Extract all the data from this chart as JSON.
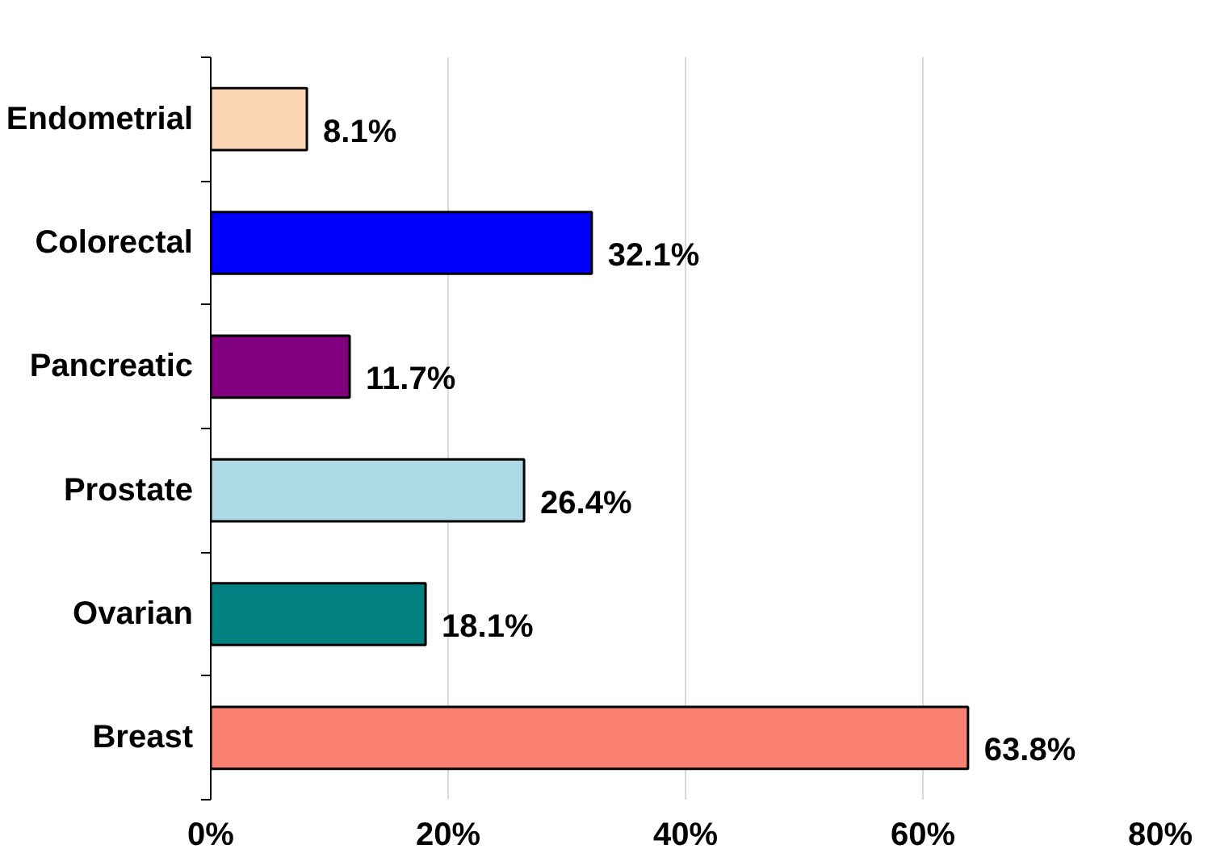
{
  "chart_data": {
    "type": "bar",
    "orientation": "horizontal",
    "categories": [
      "Endometrial",
      "Colorectal",
      "Pancreatic",
      "Prostate",
      "Ovarian",
      "Breast"
    ],
    "values": [
      8.1,
      32.1,
      11.7,
      26.4,
      18.1,
      63.8
    ],
    "colors": [
      "#fcd5b4",
      "#0000ff",
      "#800080",
      "#add8e6",
      "#008080",
      "#fa8072"
    ],
    "value_labels": [
      "8.1%",
      "32.1%",
      "11.7%",
      "26.4%",
      "18.1%",
      "63.8%"
    ],
    "xlim": [
      0,
      80
    ],
    "xticks": [
      {
        "value": 0,
        "label": "0%"
      },
      {
        "value": 20,
        "label": "20%"
      },
      {
        "value": 40,
        "label": "40%"
      },
      {
        "value": 60,
        "label": "60%"
      },
      {
        "value": 80,
        "label": "80%"
      }
    ],
    "grid": "x"
  }
}
